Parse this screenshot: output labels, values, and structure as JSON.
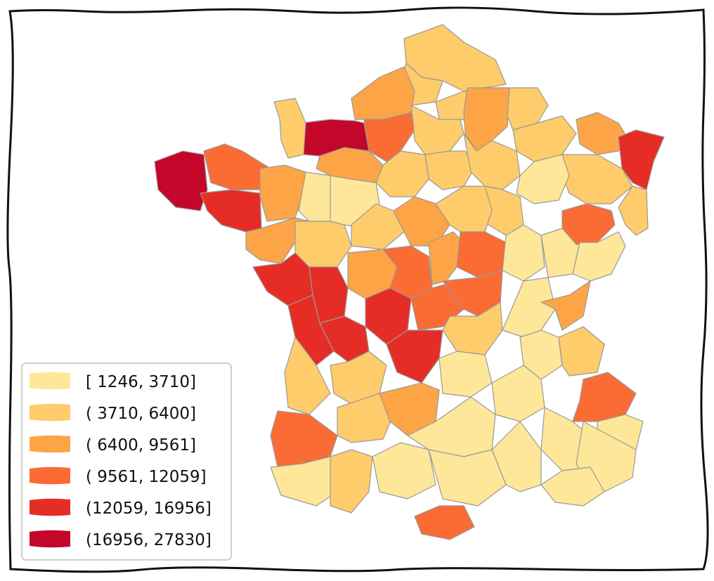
{
  "map": {
    "classes": [
      {
        "label": "[ 1246,  3710]",
        "color": "#fee799"
      },
      {
        "label": "( 3710,  6400]",
        "color": "#fecc6b"
      },
      {
        "label": "( 6400,  9561]",
        "color": "#fda546"
      },
      {
        "label": "( 9561, 12059]",
        "color": "#fb6b34"
      },
      {
        "label": "(12059, 16956]",
        "color": "#e52d25"
      },
      {
        "label": "(16956, 27830]",
        "color": "#c4062a"
      }
    ],
    "border_color": "#999999",
    "background": "#ffffff"
  }
}
